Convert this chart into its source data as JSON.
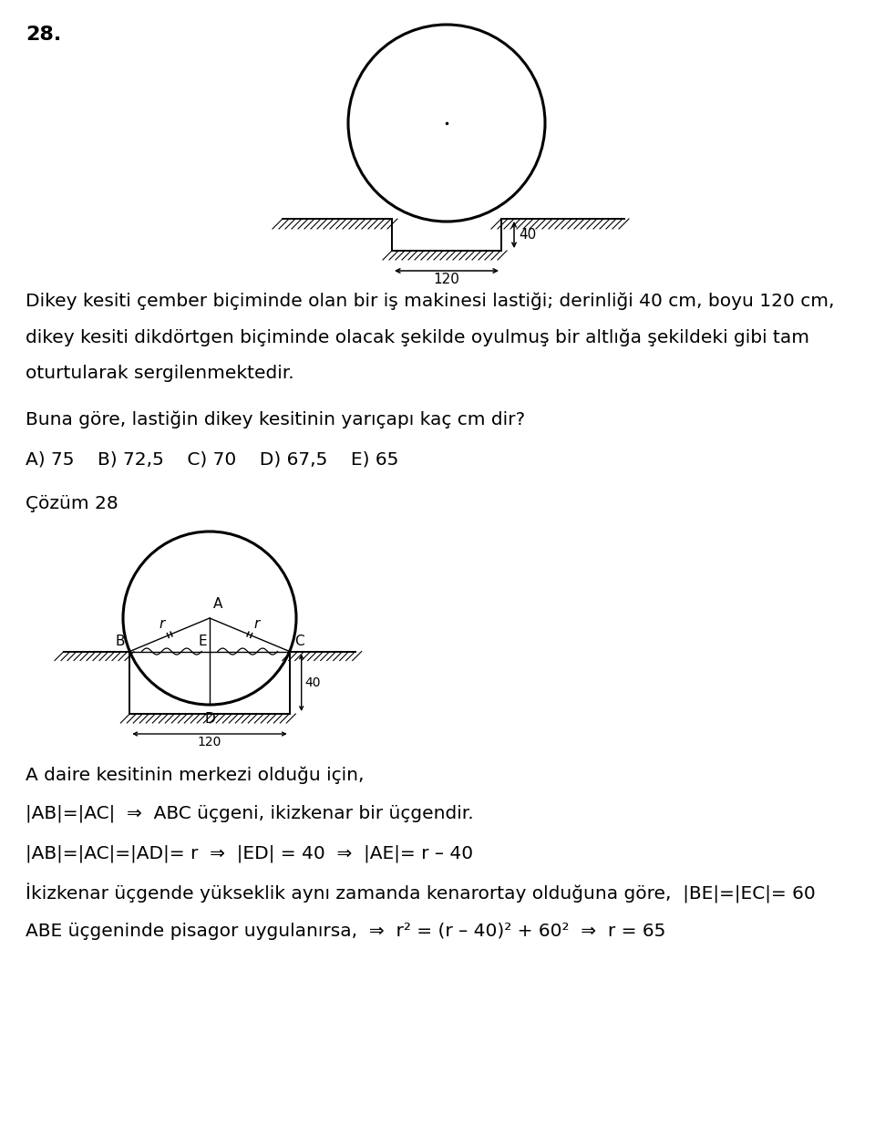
{
  "question_number": "28.",
  "problem_text_lines": [
    "Dikey kesiti çember biçiminde olan bir iş makinesi lastiği; derinliği 40 cm, boyu 120 cm,",
    "dikey kesiti dikdörtgen biçiminde olacak şekilde oyulmuş bir altlığa şekildeki gibi tam",
    "oturtularak sergilenmektedir."
  ],
  "question_line": "Buna göre, lastiğin dikey kesitinin yarıçapı kaç cm dir?",
  "choices": "A) 75    B) 72,5    C) 70    D) 67,5    E) 65",
  "solution_label": "Çözüm 28",
  "explanation_lines": [
    "A daire kesitinin merkezi olduğu için,",
    "|AB|=|AC|  ⇒  ABC üçgeni, ikizkenar bir üçgendir.",
    "|AB|=|AC|=|AD|= r  ⇒  |ED| = 40  ⇒  |AE|= r – 40",
    "İkizkenar üçgende yükseklik aynı zamanda kenarortay olduğuna göre,  |BE|=|EC|= 60",
    "ABE üçgeninde pisagor uygulanırsa,  ⇒  r² = (r – 40)² + 60²  ⇒  r = 65"
  ],
  "bg_color": "#ffffff",
  "text_color": "#000000",
  "fig_width": 9.6,
  "fig_height": 12.34
}
